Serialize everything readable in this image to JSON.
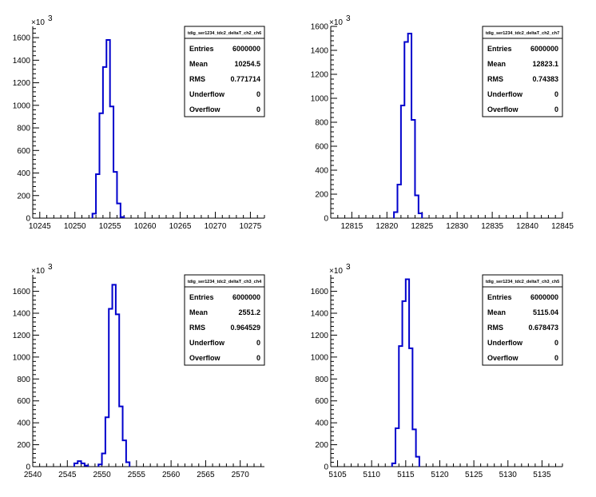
{
  "colors": {
    "histogram": "#0000cc",
    "axis": "#000000",
    "background": "#ffffff"
  },
  "exponent": {
    "base": "×10",
    "power": "3"
  },
  "stats_labels": [
    "Entries",
    "Mean",
    "RMS",
    "Underflow",
    "Overflow"
  ],
  "chart_data": [
    {
      "type": "bar",
      "title": "tdig_ser1234_tdc2_deltaT_ch2_ch6",
      "xlim": [
        10244,
        10277
      ],
      "ylim": [
        0,
        1700
      ],
      "xticks": [
        10245,
        10250,
        10255,
        10260,
        10265,
        10270,
        10275
      ],
      "yticks": [
        0,
        200,
        400,
        600,
        800,
        1000,
        1200,
        1400,
        1600
      ],
      "bin_width": 0.5,
      "bins": [
        {
          "x": 10252.5,
          "y": 40
        },
        {
          "x": 10253,
          "y": 390
        },
        {
          "x": 10253.5,
          "y": 930
        },
        {
          "x": 10254,
          "y": 1340
        },
        {
          "x": 10254.5,
          "y": 1580
        },
        {
          "x": 10255,
          "y": 990
        },
        {
          "x": 10255.5,
          "y": 410
        },
        {
          "x": 10256,
          "y": 130
        },
        {
          "x": 10256.5,
          "y": 10
        }
      ],
      "stats": {
        "Entries": "6000000",
        "Mean": "10254.5",
        "RMS": "0.771714",
        "Underflow": "0",
        "Overflow": "0"
      }
    },
    {
      "type": "bar",
      "title": "tdig_ser1234_tdc2_deltaT_ch2_ch7",
      "xlim": [
        12812,
        12845
      ],
      "ylim": [
        0,
        1600
      ],
      "xticks": [
        12815,
        12820,
        12825,
        12830,
        12835,
        12840,
        12845
      ],
      "yticks": [
        0,
        200,
        400,
        600,
        800,
        1000,
        1200,
        1400,
        1600
      ],
      "bin_width": 0.5,
      "bins": [
        {
          "x": 12821,
          "y": 50
        },
        {
          "x": 12821.5,
          "y": 280
        },
        {
          "x": 12822,
          "y": 940
        },
        {
          "x": 12822.5,
          "y": 1470
        },
        {
          "x": 12823,
          "y": 1540
        },
        {
          "x": 12823.5,
          "y": 820
        },
        {
          "x": 12824,
          "y": 190
        },
        {
          "x": 12824.5,
          "y": 40
        }
      ],
      "stats": {
        "Entries": "6000000",
        "Mean": "12823.1",
        "RMS": "0.74383",
        "Underflow": "0",
        "Overflow": "0"
      }
    },
    {
      "type": "bar",
      "title": "tdig_ser1234_tdc2_deltaT_ch3_ch4",
      "xlim": [
        2540,
        2573.5
      ],
      "ylim": [
        0,
        1750
      ],
      "xticks": [
        2540,
        2545,
        2550,
        2555,
        2560,
        2565,
        2570
      ],
      "yticks": [
        0,
        200,
        400,
        600,
        800,
        1000,
        1200,
        1400,
        1600
      ],
      "bin_width": 0.5,
      "bins": [
        {
          "x": 2546,
          "y": 30
        },
        {
          "x": 2546.5,
          "y": 50
        },
        {
          "x": 2547,
          "y": 30
        },
        {
          "x": 2547.5,
          "y": 10
        },
        {
          "x": 2549.5,
          "y": 20
        },
        {
          "x": 2550,
          "y": 120
        },
        {
          "x": 2550.5,
          "y": 450
        },
        {
          "x": 2551,
          "y": 1440
        },
        {
          "x": 2551.5,
          "y": 1660
        },
        {
          "x": 2552,
          "y": 1390
        },
        {
          "x": 2552.5,
          "y": 550
        },
        {
          "x": 2553,
          "y": 240
        },
        {
          "x": 2553.5,
          "y": 40
        }
      ],
      "stats": {
        "Entries": "6000000",
        "Mean": "2551.2",
        "RMS": "0.964529",
        "Underflow": "0",
        "Overflow": "0"
      }
    },
    {
      "type": "bar",
      "title": "tdig_ser1234_tdc2_deltaT_ch3_ch5",
      "xlim": [
        5104,
        5138
      ],
      "ylim": [
        0,
        1750
      ],
      "xticks": [
        5105,
        5110,
        5115,
        5120,
        5125,
        5130,
        5135
      ],
      "yticks": [
        0,
        200,
        400,
        600,
        800,
        1000,
        1200,
        1400,
        1600
      ],
      "bin_width": 0.5,
      "bins": [
        {
          "x": 5113,
          "y": 30
        },
        {
          "x": 5113.5,
          "y": 350
        },
        {
          "x": 5114,
          "y": 1100
        },
        {
          "x": 5114.5,
          "y": 1510
        },
        {
          "x": 5115,
          "y": 1710
        },
        {
          "x": 5115.5,
          "y": 1080
        },
        {
          "x": 5116,
          "y": 340
        },
        {
          "x": 5116.5,
          "y": 90
        }
      ],
      "stats": {
        "Entries": "6000000",
        "Mean": "5115.04",
        "RMS": "0.678473",
        "Underflow": "0",
        "Overflow": "0"
      }
    }
  ]
}
